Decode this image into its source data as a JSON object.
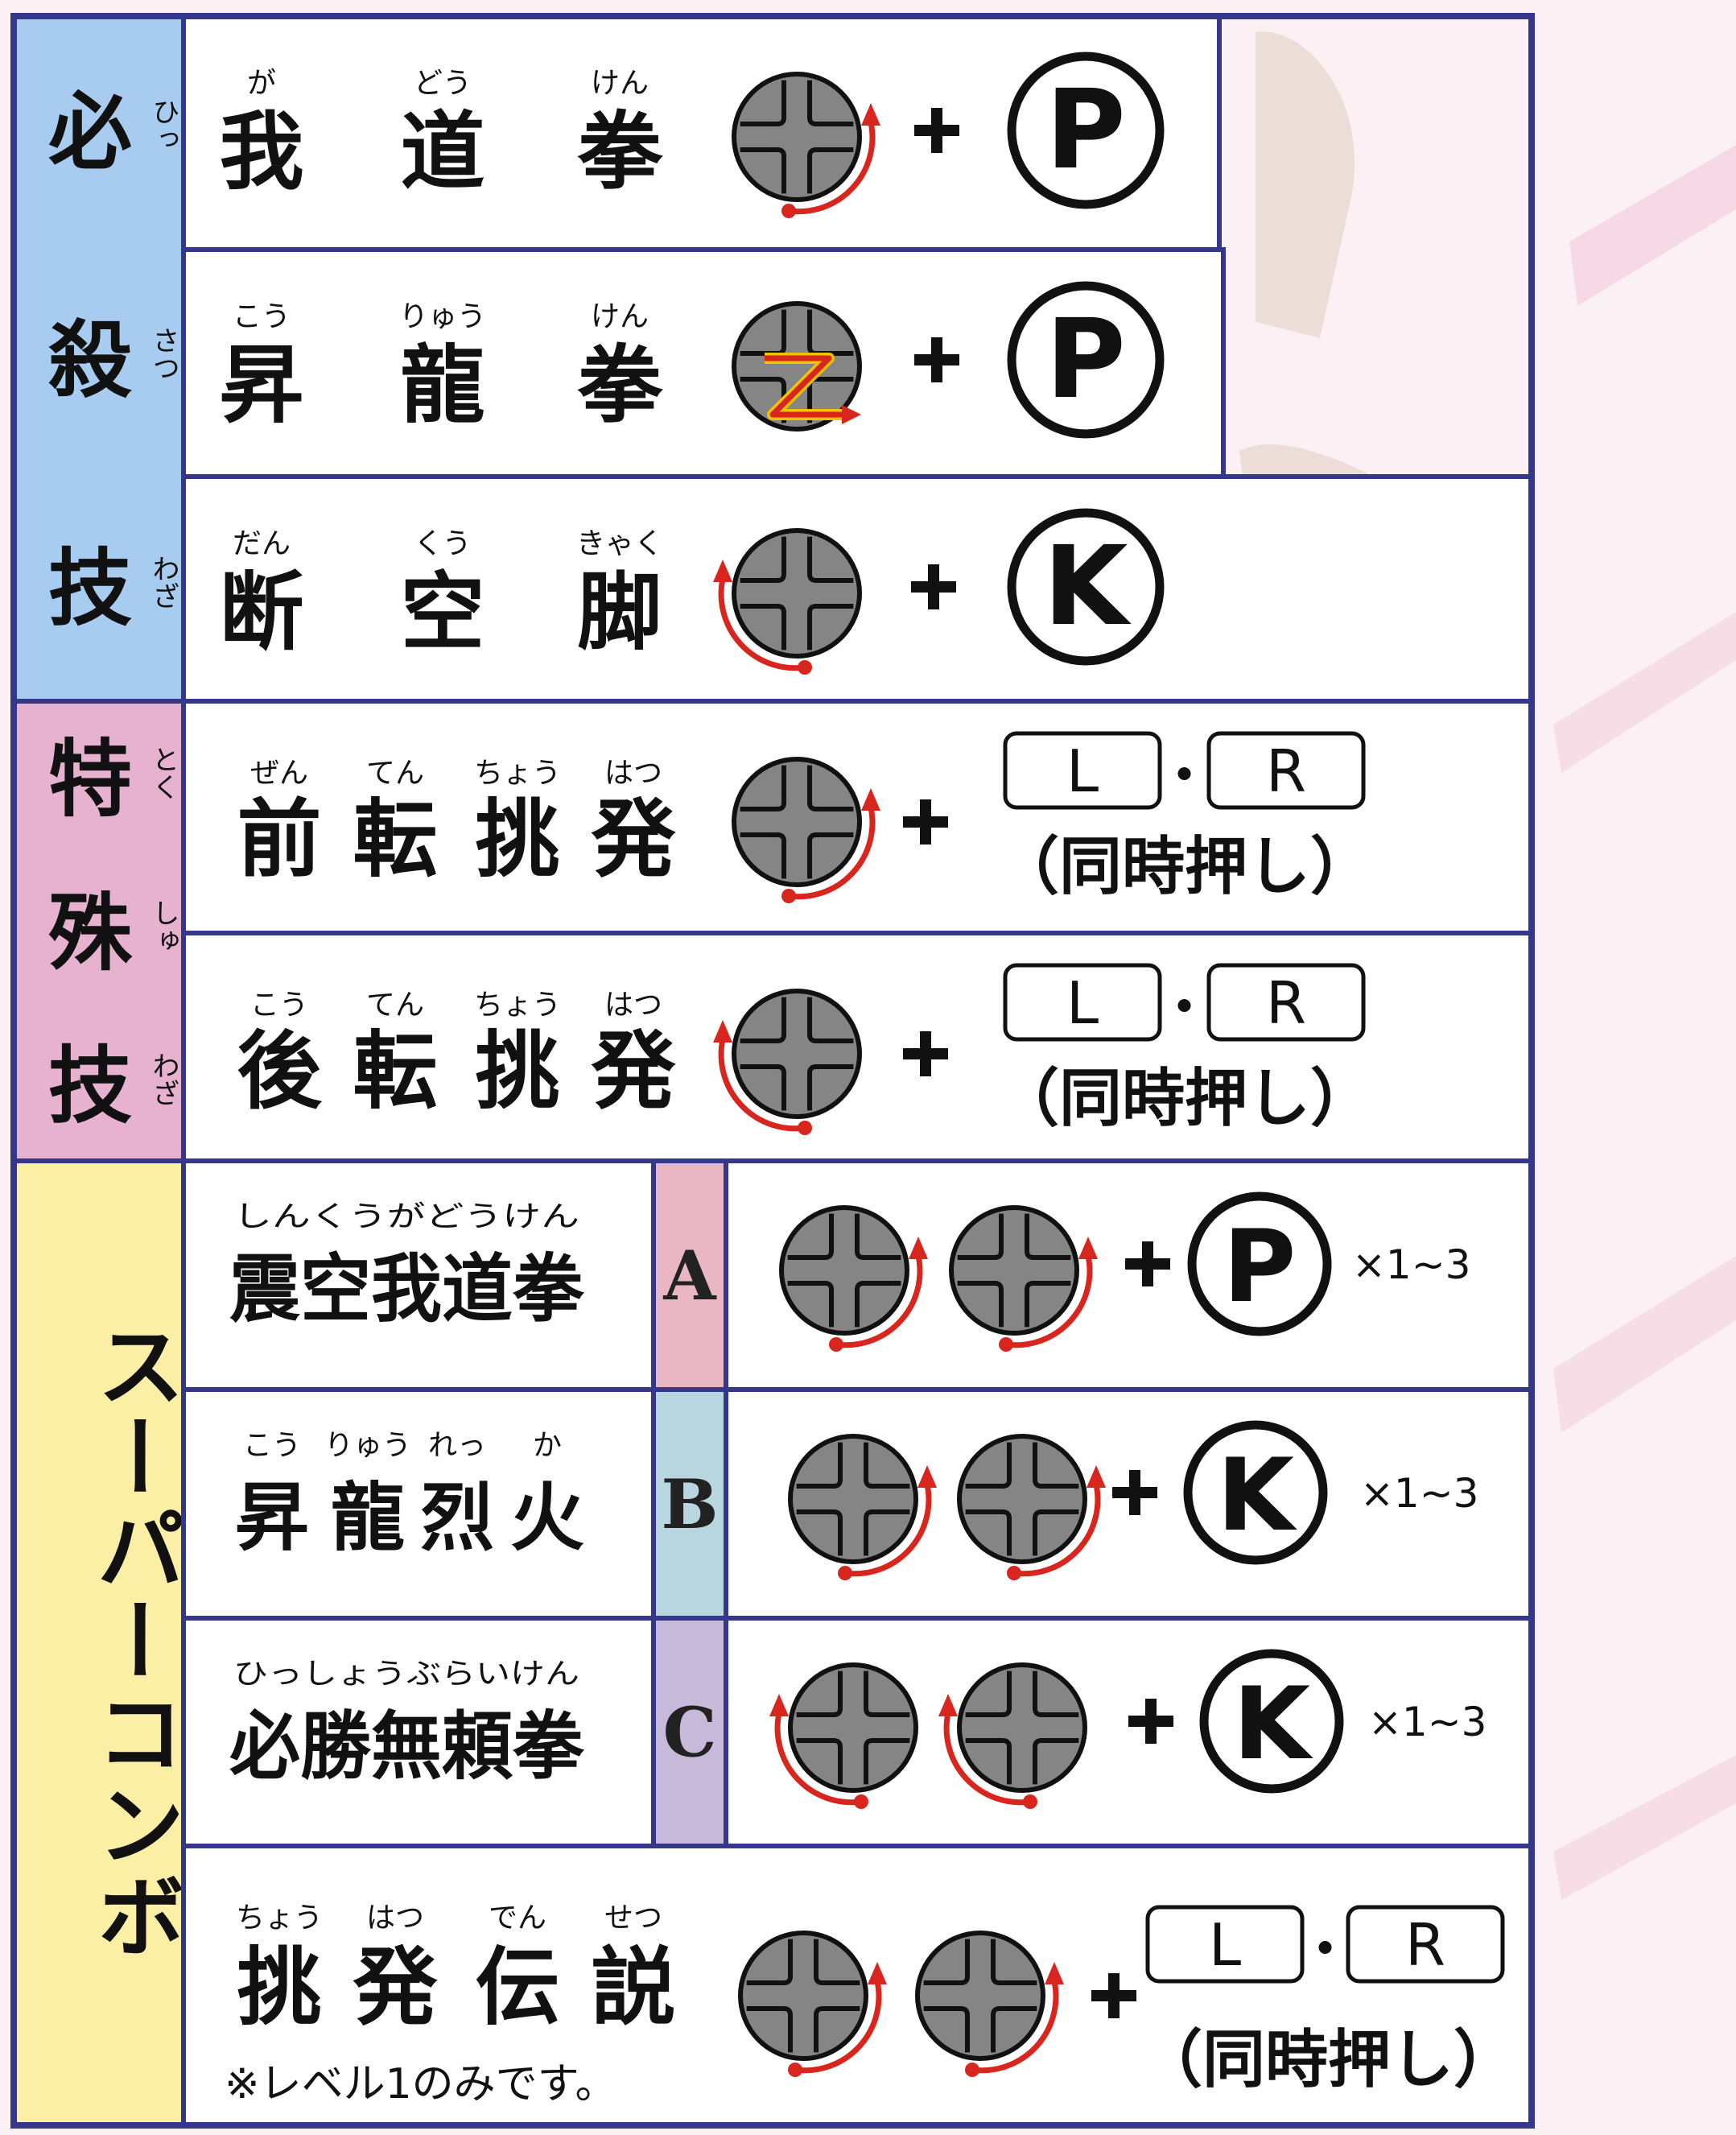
{
  "sections": [
    {
      "label": [
        {
          "text": "必",
          "ruby": "ひっ"
        },
        {
          "text": "殺",
          "ruby": "さつ"
        },
        {
          "text": "技",
          "ruby": "わざ"
        }
      ],
      "moves": [
        {
          "name": [
            {
              "text": "我",
              "ruby": "が"
            },
            {
              "text": "道",
              "ruby": "どう"
            },
            {
              "text": "拳",
              "ruby": "けん"
            }
          ],
          "button": "P"
        },
        {
          "name": [
            {
              "text": "昇",
              "ruby": "こう"
            },
            {
              "text": "龍",
              "ruby": "りゅう"
            },
            {
              "text": "拳",
              "ruby": "けん"
            }
          ],
          "button": "P"
        },
        {
          "name": [
            {
              "text": "断",
              "ruby": "だん"
            },
            {
              "text": "空",
              "ruby": "くう"
            },
            {
              "text": "脚",
              "ruby": "きゃく"
            }
          ],
          "button": "K"
        }
      ]
    },
    {
      "label": [
        {
          "text": "特",
          "ruby": "とく"
        },
        {
          "text": "殊",
          "ruby": "しゅ"
        },
        {
          "text": "技",
          "ruby": "わざ"
        }
      ],
      "moves": [
        {
          "name": [
            {
              "text": "前",
              "ruby": "ぜん"
            },
            {
              "text": "転",
              "ruby": "てん"
            },
            {
              "text": "挑",
              "ruby": "ちょう"
            },
            {
              "text": "発",
              "ruby": "はつ"
            }
          ],
          "buttons": [
            "L",
            "R"
          ],
          "note": "（同時押し）"
        },
        {
          "name": [
            {
              "text": "後",
              "ruby": "こう"
            },
            {
              "text": "転",
              "ruby": "てん"
            },
            {
              "text": "挑",
              "ruby": "ちょう"
            },
            {
              "text": "発",
              "ruby": "はつ"
            }
          ],
          "buttons": [
            "L",
            "R"
          ],
          "note": "（同時押し）"
        }
      ]
    },
    {
      "label": "スーパーコンボ",
      "moves": [
        {
          "name": "震空我道拳",
          "ruby": "しんくうがどうけん",
          "level": "A",
          "button": "P",
          "repeat": "×1~3"
        },
        {
          "name": [
            {
              "text": "昇",
              "ruby": "こう"
            },
            {
              "text": "龍",
              "ruby": "りゅう"
            },
            {
              "text": "烈",
              "ruby": "れっ"
            },
            {
              "text": "火",
              "ruby": "か"
            }
          ],
          "level": "B",
          "button": "K",
          "repeat": "×1~3"
        },
        {
          "name": "必勝無頼拳",
          "ruby": "ひっしょうぶらいけん",
          "level": "C",
          "button": "K",
          "repeat": "×1~3"
        },
        {
          "name": [
            {
              "text": "挑",
              "ruby": "ちょう"
            },
            {
              "text": "発",
              "ruby": "はつ"
            },
            {
              "text": "伝",
              "ruby": "でん"
            },
            {
              "text": "説",
              "ruby": "せつ"
            }
          ],
          "buttons": [
            "L",
            "R"
          ],
          "note": "（同時押し）",
          "footnote": "※レベル1のみです。"
        }
      ]
    }
  ]
}
